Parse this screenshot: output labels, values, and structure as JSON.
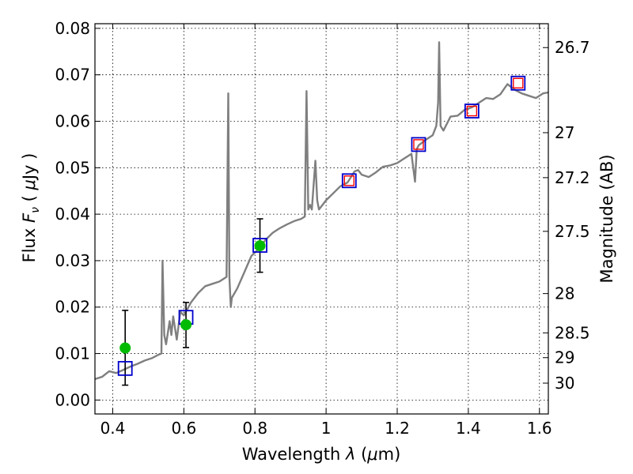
{
  "chart_data": {
    "type": "line",
    "xlabel": "Wavelength  λ (μm)",
    "ylabel": "Flux  Fν  ( μJy )",
    "ylabel_parts": {
      "prefix": "Flux",
      "var": "F",
      "sub": "ν",
      "open": "(",
      "mu": "μ",
      "unit": "Jy",
      "close": ")"
    },
    "xlabel_parts": {
      "prefix": "Wavelength",
      "var": "λ",
      "open": "(",
      "mu": "μ",
      "unit": "m)"
    },
    "y2label": "Magnitude (AB)",
    "xlim": [
      0.35,
      1.625
    ],
    "ylim": [
      -0.003,
      0.081
    ],
    "xticks": [
      0.4,
      0.6,
      0.8,
      1.0,
      1.2,
      1.4,
      1.6
    ],
    "xtick_labels": [
      "0.4",
      "0.6",
      "0.8",
      "1",
      "1.2",
      "1.4",
      "1.6"
    ],
    "yticks": [
      0.0,
      0.01,
      0.02,
      0.03,
      0.04,
      0.05,
      0.06,
      0.07,
      0.08
    ],
    "ytick_labels": [
      "0.00",
      "0.01",
      "0.02",
      "0.03",
      "0.04",
      "0.05",
      "0.06",
      "0.07",
      "0.08"
    ],
    "mag_ticks": [
      26.7,
      27,
      27.2,
      27.5,
      28,
      28.5,
      29,
      30
    ],
    "mag_tick_labels": [
      "26.7",
      "27",
      "27.2",
      "27.5",
      "28",
      "28.5",
      "29",
      "30"
    ],
    "grid": true,
    "colors": {
      "spectrum": "#7f7f7f",
      "model_box": "#0000cc",
      "model_inner": "#ff0000",
      "observed": "#00bb00",
      "errorbar": "#000000"
    },
    "series": [
      {
        "name": "spectrum",
        "type": "line",
        "x": [
          0.35,
          0.37,
          0.39,
          0.41,
          0.43,
          0.45,
          0.47,
          0.49,
          0.51,
          0.53,
          0.537,
          0.54,
          0.545,
          0.55,
          0.56,
          0.565,
          0.57,
          0.58,
          0.59,
          0.6,
          0.62,
          0.64,
          0.66,
          0.68,
          0.7,
          0.72,
          0.725,
          0.728,
          0.732,
          0.735,
          0.75,
          0.77,
          0.79,
          0.81,
          0.83,
          0.85,
          0.87,
          0.89,
          0.91,
          0.93,
          0.94,
          0.945,
          0.95,
          0.955,
          0.96,
          0.97,
          0.975,
          0.98,
          0.99,
          1.0,
          1.02,
          1.04,
          1.06,
          1.07,
          1.08,
          1.09,
          1.1,
          1.12,
          1.14,
          1.16,
          1.18,
          1.2,
          1.22,
          1.24,
          1.25,
          1.255,
          1.26,
          1.28,
          1.3,
          1.31,
          1.315,
          1.318,
          1.322,
          1.33,
          1.35,
          1.37,
          1.39,
          1.41,
          1.43,
          1.45,
          1.47,
          1.49,
          1.51,
          1.53,
          1.55,
          1.57,
          1.59,
          1.61,
          1.625
        ],
        "y": [
          0.0045,
          0.005,
          0.0062,
          0.0058,
          0.0065,
          0.0072,
          0.0078,
          0.0085,
          0.009,
          0.0098,
          0.01,
          0.03,
          0.014,
          0.012,
          0.017,
          0.014,
          0.018,
          0.013,
          0.019,
          0.0182,
          0.021,
          0.023,
          0.0245,
          0.025,
          0.0255,
          0.0265,
          0.066,
          0.0265,
          0.02,
          0.022,
          0.024,
          0.0275,
          0.031,
          0.0325,
          0.0345,
          0.036,
          0.037,
          0.0378,
          0.0385,
          0.039,
          0.0395,
          0.0665,
          0.041,
          0.042,
          0.041,
          0.0515,
          0.043,
          0.041,
          0.042,
          0.043,
          0.0445,
          0.046,
          0.0468,
          0.048,
          0.0492,
          0.0495,
          0.0485,
          0.048,
          0.049,
          0.0502,
          0.0505,
          0.051,
          0.052,
          0.053,
          0.047,
          0.054,
          0.0548,
          0.056,
          0.057,
          0.059,
          0.064,
          0.077,
          0.059,
          0.058,
          0.061,
          0.0612,
          0.0625,
          0.063,
          0.064,
          0.065,
          0.0648,
          0.0658,
          0.068,
          0.0668,
          0.066,
          0.0655,
          0.065,
          0.066,
          0.0662
        ]
      },
      {
        "name": "model-bands",
        "type": "scatter",
        "marker": "square",
        "x": [
          0.435,
          0.606,
          0.814,
          1.065,
          1.26,
          1.41,
          1.54
        ],
        "y": [
          0.0068,
          0.0178,
          0.0333,
          0.0472,
          0.055,
          0.0622,
          0.0682
        ],
        "inner_marker": [
          false,
          false,
          false,
          true,
          true,
          true,
          true
        ]
      },
      {
        "name": "observed",
        "type": "scatter",
        "marker": "circle",
        "x": [
          0.435,
          0.606,
          0.814
        ],
        "y": [
          0.0112,
          0.0162,
          0.0332
        ],
        "yerr_low": [
          0.0032,
          0.0113,
          0.0275
        ],
        "yerr_high": [
          0.0193,
          0.021,
          0.039
        ]
      }
    ]
  }
}
